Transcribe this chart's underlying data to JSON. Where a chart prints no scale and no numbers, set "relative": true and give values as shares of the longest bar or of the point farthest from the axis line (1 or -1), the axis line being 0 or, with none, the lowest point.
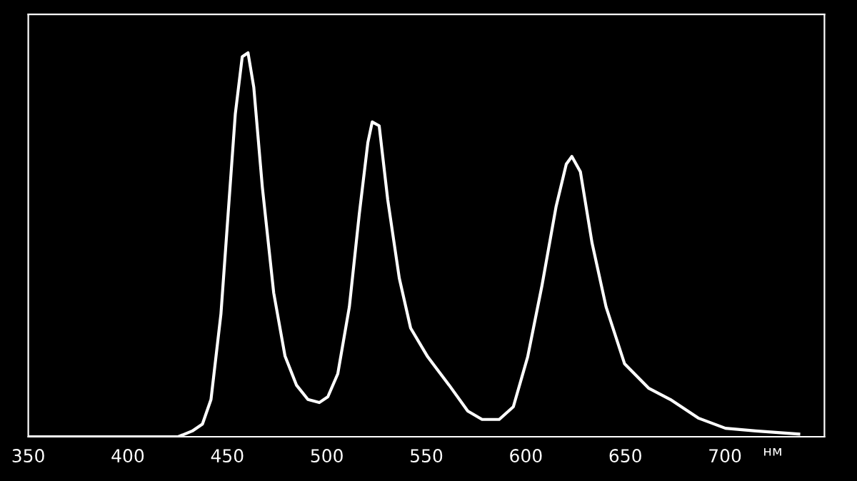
{
  "chart_data": {
    "type": "line",
    "relative": true,
    "xlabel": "нм",
    "xlim": [
      350,
      750
    ],
    "xticks": [
      350,
      400,
      450,
      500,
      550,
      600,
      650,
      700
    ],
    "grid": false,
    "legend": false,
    "marker": "none",
    "line_style": "solid",
    "series": [
      {
        "color": "#ffffff",
        "x": [
          350,
          425.3,
          432.4,
          437.5,
          441.8,
          446.8,
          450.4,
          454,
          457.5,
          460.4,
          463.3,
          467.6,
          473.3,
          479,
          484.8,
          490.5,
          496.2,
          500.5,
          505.5,
          511.3,
          516.3,
          520.6,
          522.8,
          526.3,
          530.6,
          536.4,
          542.1,
          550.7,
          561.5,
          570.8,
          578,
          586.6,
          593.7,
          600.9,
          608.1,
          615.2,
          620.3,
          623.1,
          627.4,
          633.2,
          640.3,
          649.6,
          661.8,
          672.6,
          686.9,
          700.3,
          715.6,
          737.1
        ],
        "values": [
          0,
          0,
          0.015,
          0.033,
          0.097,
          0.32,
          0.58,
          0.84,
          0.99,
          1.0,
          0.91,
          0.65,
          0.375,
          0.21,
          0.134,
          0.097,
          0.089,
          0.104,
          0.164,
          0.338,
          0.58,
          0.766,
          0.82,
          0.81,
          0.617,
          0.413,
          0.283,
          0.208,
          0.134,
          0.067,
          0.045,
          0.045,
          0.078,
          0.208,
          0.394,
          0.6,
          0.71,
          0.73,
          0.69,
          0.506,
          0.338,
          0.19,
          0.126,
          0.097,
          0.048,
          0.022,
          0.015,
          0.007
        ]
      }
    ]
  }
}
